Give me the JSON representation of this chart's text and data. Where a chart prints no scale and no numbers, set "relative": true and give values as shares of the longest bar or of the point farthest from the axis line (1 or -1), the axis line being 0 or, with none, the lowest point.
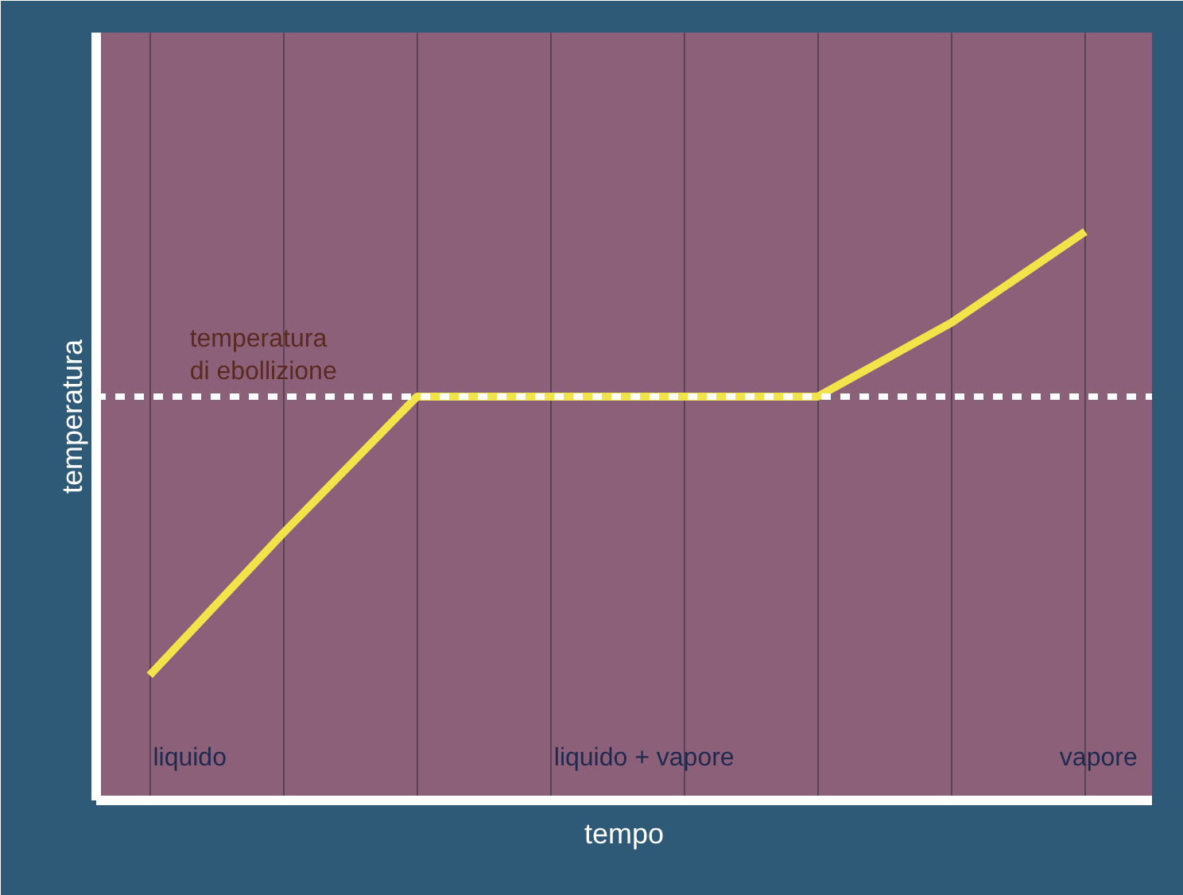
{
  "chart_data": {
    "type": "line",
    "relative": true,
    "xlabel": "tempo",
    "ylabel": "temperatura",
    "categories": [
      null,
      null,
      null,
      null,
      null,
      null,
      null,
      null
    ],
    "series": [
      {
        "color": "#f2e34a",
        "values": [
          0.22,
          0.47,
          0.71,
          0.71,
          0.71,
          0.71,
          0.84,
          1.0
        ]
      }
    ],
    "ref_lines": [
      {
        "axis": "y",
        "value": 0.71,
        "label": "temperatura\ndi ebollizione",
        "color": "#ffffff",
        "line_style": "dashed"
      }
    ],
    "annotations": [
      "liquido",
      "liquido + vapore",
      "vapore"
    ],
    "grid": "x",
    "marker": "none",
    "line_style": "solid"
  }
}
